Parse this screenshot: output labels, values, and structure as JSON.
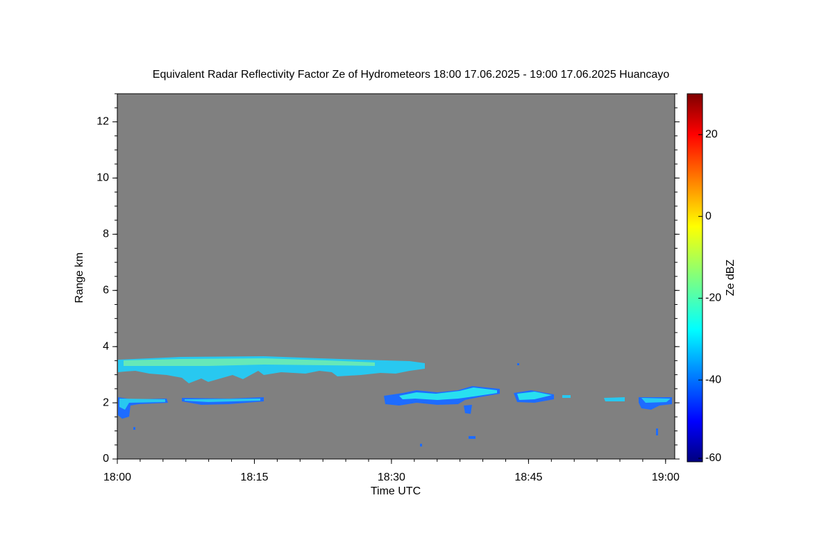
{
  "chart_data": {
    "type": "heatmap",
    "title": "Equivalent Radar Reflectivity Factor Ze of Hydrometeors   18:00 17.06.2025 - 19:00 17.06.2025 Huancayo",
    "xlabel": "Time UTC",
    "ylabel": "Range km",
    "xlim": [
      "18:00",
      "19:01"
    ],
    "xticks": [
      "18:00",
      "18:15",
      "18:30",
      "18:45",
      "19:00"
    ],
    "ylim": [
      0,
      13
    ],
    "yticks": [
      0,
      2,
      4,
      6,
      8,
      10,
      12
    ],
    "background": "#808080",
    "colorbar": {
      "label": "Ze dBZ",
      "colormap": "jet",
      "clim": [
        -60,
        30
      ],
      "ticks": [
        -60,
        -40,
        -20,
        0,
        20
      ]
    }
  }
}
